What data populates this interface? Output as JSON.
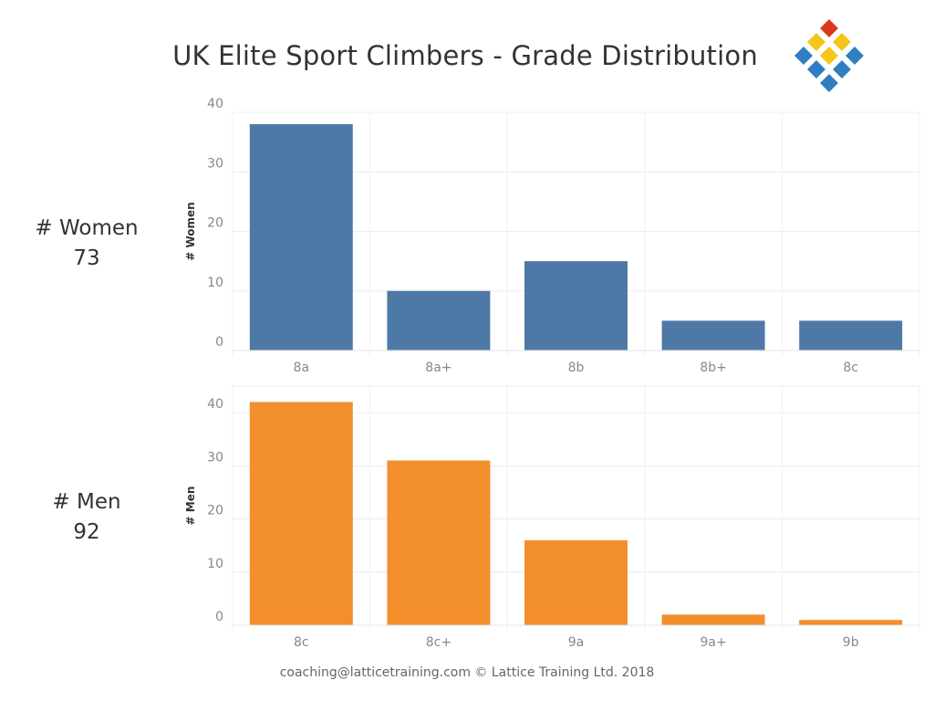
{
  "title": "UK Elite Sport Climbers - Grade Distribution",
  "stats": {
    "women": {
      "label": "# Women",
      "value": "73"
    },
    "men": {
      "label": "# Men",
      "value": "92"
    }
  },
  "footer": "coaching@latticetraining.com © Lattice Training Ltd. 2018",
  "logo": {
    "icon": "lattice-diamond-logo-icon",
    "colors": {
      "top": "#d93a1b",
      "middle": "#f5c518",
      "outer": "#2d7fc1"
    }
  },
  "chart_data": [
    {
      "type": "bar",
      "categories": [
        "8a",
        "8a+",
        "8b",
        "8b+",
        "8c"
      ],
      "values": [
        38,
        10,
        15,
        5,
        5
      ],
      "ylabel": "# Women",
      "ylim": [
        0,
        40
      ],
      "yticks": [
        "0",
        "10",
        "20",
        "30",
        "40"
      ],
      "color": "#4e79a7",
      "grid": true
    },
    {
      "type": "bar",
      "categories": [
        "8c",
        "8c+",
        "9a",
        "9a+",
        "9b"
      ],
      "values": [
        42,
        31,
        16,
        2,
        1
      ],
      "ylabel": "# Men",
      "ylim": [
        0,
        45
      ],
      "yticks": [
        "0",
        "10",
        "20",
        "30",
        "40"
      ],
      "color": "#f28e2b",
      "grid": true
    }
  ]
}
